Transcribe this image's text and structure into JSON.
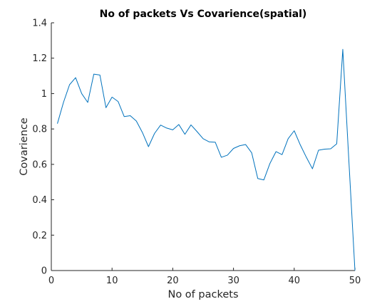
{
  "chart_data": {
    "type": "line",
    "title": "No of packets Vs Covarience(spatial)",
    "xlabel": "No of packets",
    "ylabel": "Covarience",
    "xlim": [
      0,
      50
    ],
    "ylim": [
      0,
      1.4
    ],
    "xticks": [
      0,
      10,
      20,
      30,
      40,
      50
    ],
    "xtick_labels": [
      "0",
      "10",
      "20",
      "30",
      "40",
      "50"
    ],
    "yticks": [
      0,
      0.2,
      0.4,
      0.6,
      0.8,
      1,
      1.2,
      1.4
    ],
    "ytick_labels": [
      "0",
      "0.2",
      "0.4",
      "0.6",
      "0.8",
      "1",
      "1.2",
      "1.4"
    ],
    "grid": false,
    "series": [
      {
        "color": "#0072bd",
        "x": [
          1,
          2,
          3,
          4,
          5,
          6,
          7,
          8,
          9,
          10,
          11,
          12,
          13,
          14,
          15,
          16,
          17,
          18,
          19,
          20,
          21,
          22,
          23,
          24,
          25,
          26,
          27,
          28,
          29,
          30,
          31,
          32,
          33,
          34,
          35,
          36,
          37,
          38,
          39,
          40,
          41,
          42,
          43,
          44,
          45,
          46,
          47,
          48,
          49,
          50
        ],
        "y": [
          0.83,
          0.95,
          1.05,
          1.09,
          1.0,
          0.95,
          1.11,
          1.105,
          0.92,
          0.98,
          0.955,
          0.87,
          0.875,
          0.845,
          0.78,
          0.7,
          0.775,
          0.822,
          0.805,
          0.795,
          0.825,
          0.77,
          0.823,
          0.785,
          0.745,
          0.727,
          0.725,
          0.64,
          0.652,
          0.69,
          0.705,
          0.712,
          0.665,
          0.52,
          0.512,
          0.605,
          0.672,
          0.655,
          0.745,
          0.79,
          0.71,
          0.64,
          0.575,
          0.68,
          0.686,
          0.688,
          0.716,
          1.25,
          0.62,
          0.0
        ]
      }
    ]
  }
}
